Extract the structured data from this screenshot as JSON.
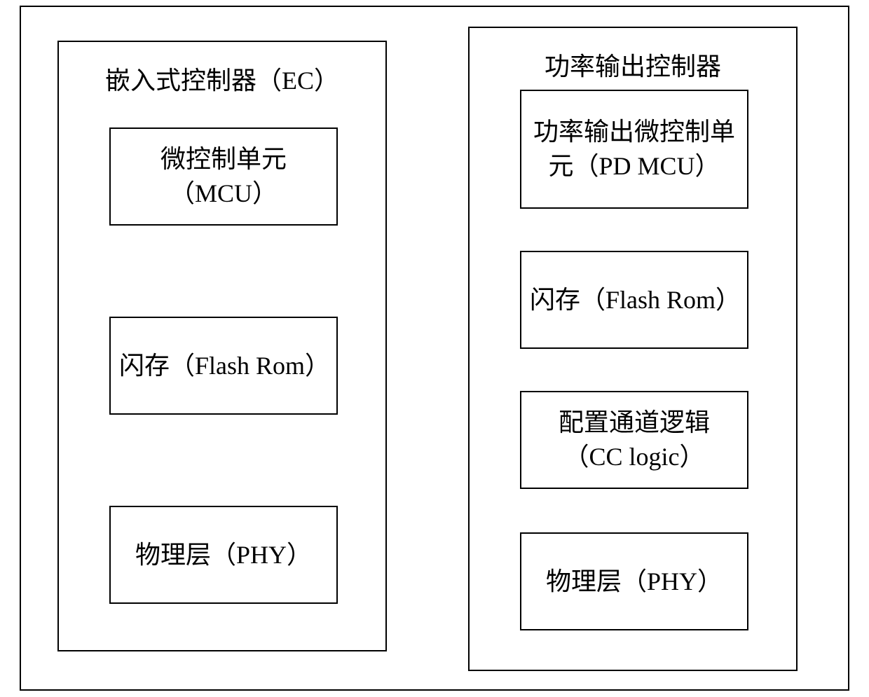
{
  "diagram": {
    "background_color": "#ffffff",
    "border_color": "#000000",
    "text_color": "#000000",
    "font_size": 36,
    "left_controller": {
      "title": "嵌入式控制器（EC）",
      "boxes": [
        {
          "label": "微控制单元（MCU）"
        },
        {
          "label": "闪存（Flash Rom）"
        },
        {
          "label": "物理层（PHY）"
        }
      ]
    },
    "right_controller": {
      "title": "功率输出控制器",
      "boxes": [
        {
          "label": "功率输出微控制单元（PD MCU）"
        },
        {
          "label": "闪存（Flash Rom）"
        },
        {
          "label": "配置通道逻辑（CC logic）"
        },
        {
          "label": "物理层（PHY）"
        }
      ]
    }
  }
}
